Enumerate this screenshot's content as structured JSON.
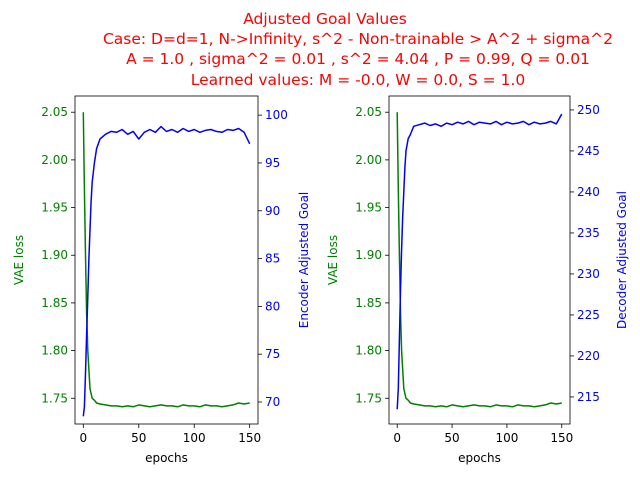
{
  "figure": {
    "title_lines": [
      "Adjusted Goal Values",
      "Case: D=d=1, N->Infinity, s^2 - Non-trainable > A^2 + sigma^2",
      "A = 1.0 , sigma^2 = 0.01 , s^2 = 4.04 , P = 0.99, Q = 0.01",
      "Learned values: M = -0.0, W = 0.0, S = 1.0"
    ],
    "colors": {
      "title": "#ff0000",
      "left_series": "#008000",
      "right_series": "#0000ff"
    }
  },
  "chart_data": [
    {
      "type": "line",
      "xlabel": "epochs",
      "xlim": [
        -7.5,
        157.5
      ],
      "xticks": [
        0,
        50,
        100,
        150
      ],
      "ylabel_left": "VAE loss",
      "ylim_left": [
        1.723,
        2.067
      ],
      "yticks_left": [
        1.75,
        1.8,
        1.85,
        1.9,
        1.95,
        2.0,
        2.05
      ],
      "ylabel_right": "Encoder Adjusted Goal",
      "ylim_right": [
        67.7,
        102.0
      ],
      "yticks_right": [
        70,
        75,
        80,
        85,
        90,
        95,
        100
      ],
      "series": [
        {
          "axis": "left",
          "color": "#008000",
          "x": [
            0,
            1,
            2,
            3,
            4,
            5,
            6,
            7,
            8,
            10,
            12,
            15,
            20,
            25,
            30,
            35,
            40,
            45,
            50,
            55,
            60,
            65,
            70,
            75,
            80,
            85,
            90,
            95,
            100,
            105,
            110,
            115,
            120,
            125,
            130,
            135,
            140,
            145,
            150
          ],
          "values": [
            2.05,
            1.97,
            1.9,
            1.84,
            1.8,
            1.78,
            1.76,
            1.755,
            1.75,
            1.748,
            1.745,
            1.744,
            1.743,
            1.742,
            1.742,
            1.741,
            1.742,
            1.741,
            1.743,
            1.742,
            1.741,
            1.742,
            1.743,
            1.742,
            1.742,
            1.741,
            1.743,
            1.742,
            1.742,
            1.741,
            1.743,
            1.742,
            1.742,
            1.741,
            1.742,
            1.743,
            1.745,
            1.744,
            1.745
          ]
        },
        {
          "axis": "right",
          "color": "#0000ff",
          "x": [
            0,
            1,
            2,
            3,
            4,
            5,
            6,
            7,
            8,
            10,
            12,
            15,
            20,
            25,
            30,
            35,
            40,
            45,
            50,
            55,
            60,
            65,
            70,
            75,
            80,
            85,
            90,
            95,
            100,
            105,
            110,
            115,
            120,
            125,
            130,
            135,
            140,
            145,
            150
          ],
          "values": [
            68.5,
            69.5,
            73,
            77,
            81,
            85,
            88,
            91,
            93,
            95,
            96.5,
            97.5,
            98,
            98.3,
            98.2,
            98.5,
            98,
            98.3,
            97.5,
            98.2,
            98.5,
            98.2,
            98.8,
            98.3,
            98.5,
            98.2,
            98.6,
            98.3,
            98.5,
            98.2,
            98.4,
            98.5,
            98.3,
            98.2,
            98.5,
            98.4,
            98.6,
            98.2,
            97
          ]
        }
      ]
    },
    {
      "type": "line",
      "xlabel": "epochs",
      "xlim": [
        -7.5,
        157.5
      ],
      "xticks": [
        0,
        50,
        100,
        150
      ],
      "ylabel_left": "VAE loss",
      "ylim_left": [
        1.723,
        2.067
      ],
      "yticks_left": [
        1.75,
        1.8,
        1.85,
        1.9,
        1.95,
        2.0,
        2.05
      ],
      "ylabel_right": "Decoder Adjusted Goal",
      "ylim_right": [
        211.7,
        251.7
      ],
      "yticks_right": [
        215,
        220,
        225,
        230,
        235,
        240,
        245,
        250
      ],
      "series": [
        {
          "axis": "left",
          "color": "#008000",
          "x": [
            0,
            1,
            2,
            3,
            4,
            5,
            6,
            7,
            8,
            10,
            12,
            15,
            20,
            25,
            30,
            35,
            40,
            45,
            50,
            55,
            60,
            65,
            70,
            75,
            80,
            85,
            90,
            95,
            100,
            105,
            110,
            115,
            120,
            125,
            130,
            135,
            140,
            145,
            150
          ],
          "values": [
            2.05,
            1.97,
            1.9,
            1.84,
            1.8,
            1.78,
            1.76,
            1.755,
            1.75,
            1.748,
            1.745,
            1.744,
            1.743,
            1.742,
            1.742,
            1.741,
            1.742,
            1.741,
            1.743,
            1.742,
            1.741,
            1.742,
            1.743,
            1.742,
            1.742,
            1.741,
            1.743,
            1.742,
            1.742,
            1.741,
            1.743,
            1.742,
            1.742,
            1.741,
            1.742,
            1.743,
            1.745,
            1.744,
            1.745
          ]
        },
        {
          "axis": "right",
          "color": "#0000ff",
          "x": [
            0,
            1,
            2,
            3,
            4,
            5,
            6,
            7,
            8,
            10,
            12,
            15,
            20,
            25,
            30,
            35,
            40,
            45,
            50,
            55,
            60,
            65,
            70,
            75,
            80,
            85,
            90,
            95,
            100,
            105,
            110,
            115,
            120,
            125,
            130,
            135,
            140,
            145,
            150
          ],
          "values": [
            213.5,
            216,
            222,
            228,
            233,
            237,
            240,
            243,
            245,
            246.5,
            247,
            248,
            248.2,
            248.4,
            248.1,
            248.3,
            248,
            248.4,
            248.2,
            248.5,
            248.3,
            248.6,
            248.2,
            248.5,
            248.4,
            248.3,
            248.6,
            248.2,
            248.5,
            248.3,
            248.4,
            248.6,
            248.2,
            248.5,
            248.3,
            248.4,
            248.6,
            248.3,
            249.5
          ]
        }
      ]
    }
  ]
}
